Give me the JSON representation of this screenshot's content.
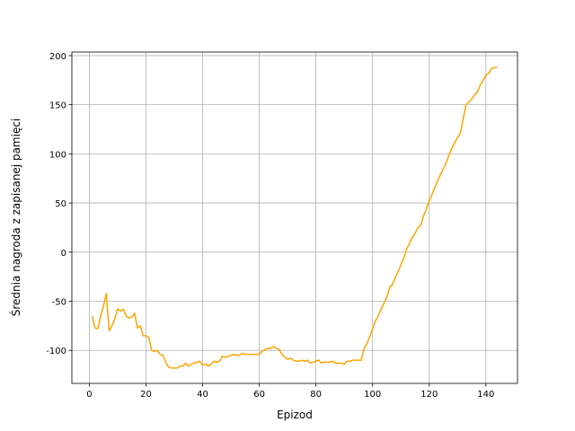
{
  "chart_data": {
    "type": "line",
    "x_label": "Epizod",
    "y_label": "Średnia nagroda z zapisanej pamięci",
    "x": [
      1,
      2,
      3,
      4,
      5,
      6,
      7,
      8,
      9,
      10,
      11,
      12,
      13,
      14,
      15,
      16,
      17,
      18,
      19,
      20,
      21,
      22,
      23,
      24,
      25,
      26,
      27,
      28,
      29,
      30,
      31,
      32,
      33,
      34,
      35,
      36,
      37,
      38,
      39,
      40,
      41,
      42,
      43,
      44,
      45,
      46,
      47,
      48,
      49,
      50,
      51,
      52,
      53,
      54,
      55,
      56,
      57,
      58,
      59,
      60,
      61,
      62,
      63,
      64,
      65,
      66,
      67,
      68,
      69,
      70,
      71,
      72,
      73,
      74,
      75,
      76,
      77,
      78,
      79,
      80,
      81,
      82,
      83,
      84,
      85,
      86,
      87,
      88,
      89,
      90,
      91,
      92,
      93,
      94,
      95,
      96,
      97,
      98,
      99,
      100,
      101,
      102,
      103,
      104,
      105,
      106,
      107,
      108,
      109,
      110,
      111,
      112,
      113,
      114,
      115,
      116,
      117,
      118,
      119,
      120,
      121,
      122,
      123,
      124,
      125,
      126,
      127,
      128,
      129,
      130,
      131,
      132,
      133,
      134,
      135,
      136,
      137,
      138,
      139,
      140,
      141,
      142,
      143,
      144
    ],
    "series": [
      {
        "color": "#ffa500",
        "values": [
          -65,
          -77,
          -78,
          -65,
          -55,
          -42,
          -80,
          -75,
          -68,
          -58,
          -60,
          -58,
          -65,
          -67,
          -66,
          -62,
          -77,
          -75,
          -85,
          -85,
          -87,
          -100,
          -101,
          -100,
          -104,
          -105,
          -112,
          -117,
          -118,
          -118,
          -118,
          -116,
          -116,
          -113,
          -116,
          -114,
          -113,
          -112,
          -111,
          -115,
          -114,
          -116,
          -114,
          -111,
          -112,
          -111,
          -106,
          -107,
          -106,
          -105,
          -104,
          -105,
          -105,
          -103,
          -104,
          -104,
          -104,
          -104,
          -104,
          -104,
          -101,
          -99,
          -98,
          -98,
          -96,
          -98,
          -99,
          -104,
          -107,
          -109,
          -108,
          -110,
          -111,
          -111,
          -110,
          -111,
          -110,
          -113,
          -112,
          -111,
          -110,
          -113,
          -112,
          -112,
          -112,
          -111,
          -113,
          -113,
          -113,
          -114,
          -111,
          -111,
          -110,
          -110,
          -110,
          -110,
          -98,
          -93,
          -86,
          -78,
          -70,
          -65,
          -58,
          -52,
          -46,
          -36,
          -33,
          -26,
          -20,
          -13,
          -6,
          3,
          9,
          15,
          19,
          25,
          27,
          37,
          44,
          52,
          59,
          66,
          73,
          79,
          85,
          91,
          99,
          106,
          111,
          117,
          121,
          136,
          150,
          153,
          156,
          160,
          163,
          170,
          175,
          180,
          182,
          187,
          188,
          188
        ]
      }
    ],
    "xlim": [
      -6.15,
      151.15
    ],
    "ylim": [
      -133.6,
      203.6
    ],
    "xticks": [
      0,
      20,
      40,
      60,
      80,
      100,
      120,
      140
    ],
    "yticks": [
      -100,
      -50,
      0,
      50,
      100,
      150,
      200
    ],
    "grid": true
  }
}
